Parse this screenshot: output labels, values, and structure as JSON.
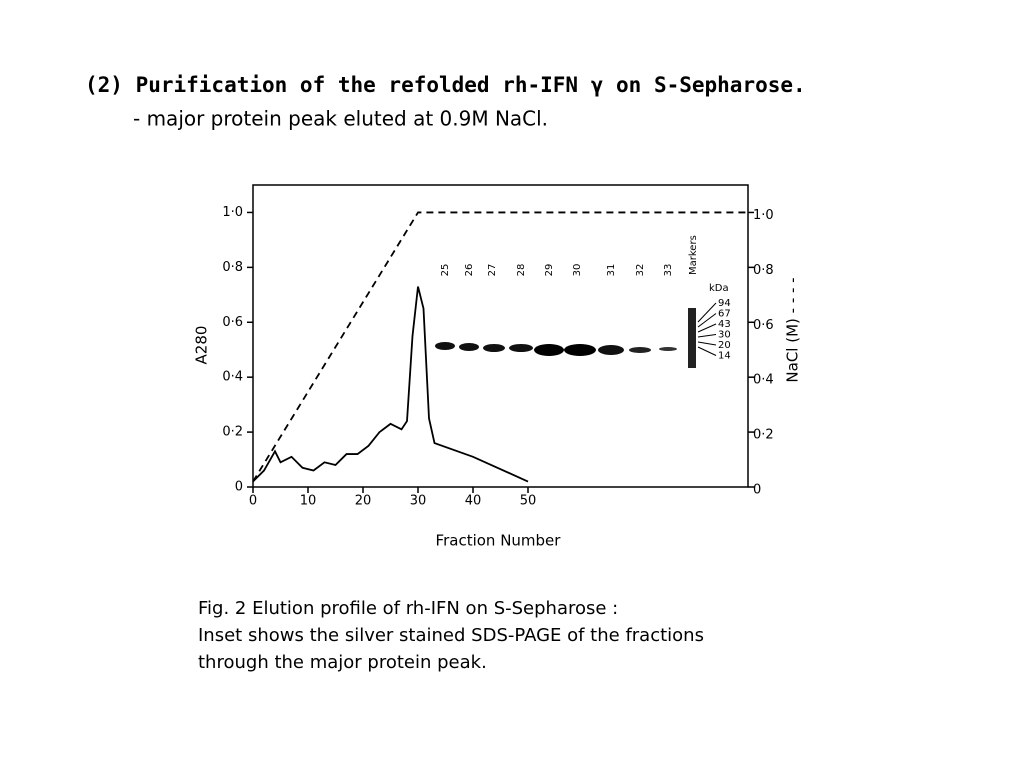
{
  "slide": {
    "title": "(2) Purification of the refolded rh-IFN γ on S-Sepharose.",
    "subtitle": "- major protein peak eluted at 0.9M NaCl.",
    "caption": [
      "Fig. 2 Elution profile of rh-IFN on S-Sepharose :",
      "Inset shows the silver stained SDS-PAGE of the fractions",
      "through the major protein peak."
    ]
  },
  "chart_data": {
    "type": "line",
    "x_label": "Fraction Number",
    "y_label": "A280",
    "y2_label": "NaCl (M) - - - -",
    "xlim": [
      0,
      90
    ],
    "xticks": [
      0,
      10,
      20,
      30,
      40,
      50
    ],
    "ylim": [
      0,
      1.1
    ],
    "yticks": [
      0,
      {
        "value": 0.2,
        "label": "0·2"
      },
      {
        "value": 0.4,
        "label": "0·4"
      },
      {
        "value": 0.6,
        "label": "0·6"
      },
      {
        "value": 0.8,
        "label": "0·8"
      },
      {
        "value": 1,
        "label": "1·0"
      }
    ],
    "y2lim": [
      0,
      1.1
    ],
    "y2ticks": [
      0,
      {
        "value": 0.2,
        "label": "0·2"
      },
      {
        "value": 0.4,
        "label": "0·4"
      },
      {
        "value": 0.6,
        "label": "0·6"
      },
      {
        "value": 0.8,
        "label": "0·8"
      },
      {
        "value": 1,
        "label": "1·0"
      }
    ],
    "series": [
      {
        "name": "A280",
        "color": "#000000",
        "dash": false,
        "x": [
          0,
          2,
          4,
          5,
          7,
          9,
          11,
          13,
          15,
          17,
          19,
          21,
          23,
          25,
          27,
          28,
          29,
          30,
          31,
          32,
          33,
          40,
          50
        ],
        "values": [
          0.02,
          0.06,
          0.13,
          0.09,
          0.11,
          0.07,
          0.06,
          0.09,
          0.08,
          0.12,
          0.12,
          0.15,
          0.2,
          0.23,
          0.21,
          0.24,
          0.55,
          0.73,
          0.65,
          0.25,
          0.16,
          0.11,
          0.02
        ]
      },
      {
        "name": "NaCl (M)",
        "color": "#000000",
        "dash": true,
        "axis": "y2",
        "x": [
          0,
          30,
          90
        ],
        "values": [
          0.02,
          1,
          1
        ]
      }
    ],
    "inset": {
      "lanes": [
        "25",
        "26",
        "27",
        "28",
        "29",
        "30",
        "31",
        "32",
        "33",
        "Markers"
      ],
      "unit": "kDa",
      "marker_sizes": [
        94,
        67,
        43,
        30,
        20,
        14
      ]
    }
  }
}
